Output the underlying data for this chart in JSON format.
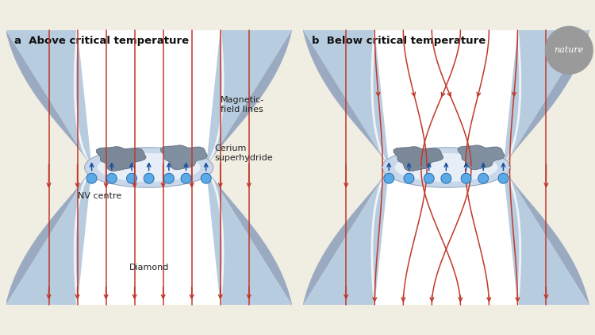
{
  "bg_color": "#f0ede3",
  "title_a": "a  Above critical temperature",
  "title_b": "b  Below critical temperature",
  "label_magnetic": "Magnetic-\nfield lines",
  "label_cerium": "Cerium\nsuperhydride",
  "label_nv": "NV centre",
  "label_diamond": "Diamond",
  "nature_text": "nature",
  "arrow_color": "#c0392b",
  "nv_circle_color": "#5aaae8",
  "nv_arrow_color": "#1a50a0",
  "rock_color1": "#7a8898",
  "rock_color2": "#8090a0",
  "anvil_white": "#ffffff",
  "anvil_light": "#dce8f5",
  "anvil_mid": "#b8cce0",
  "anvil_dark": "#9aaac0",
  "gasket_color": "#c8d8ea",
  "gasket_inner": "#e8eef8",
  "gasket_edge": "#9aaac0",
  "nature_circle": "#9a9a9a"
}
